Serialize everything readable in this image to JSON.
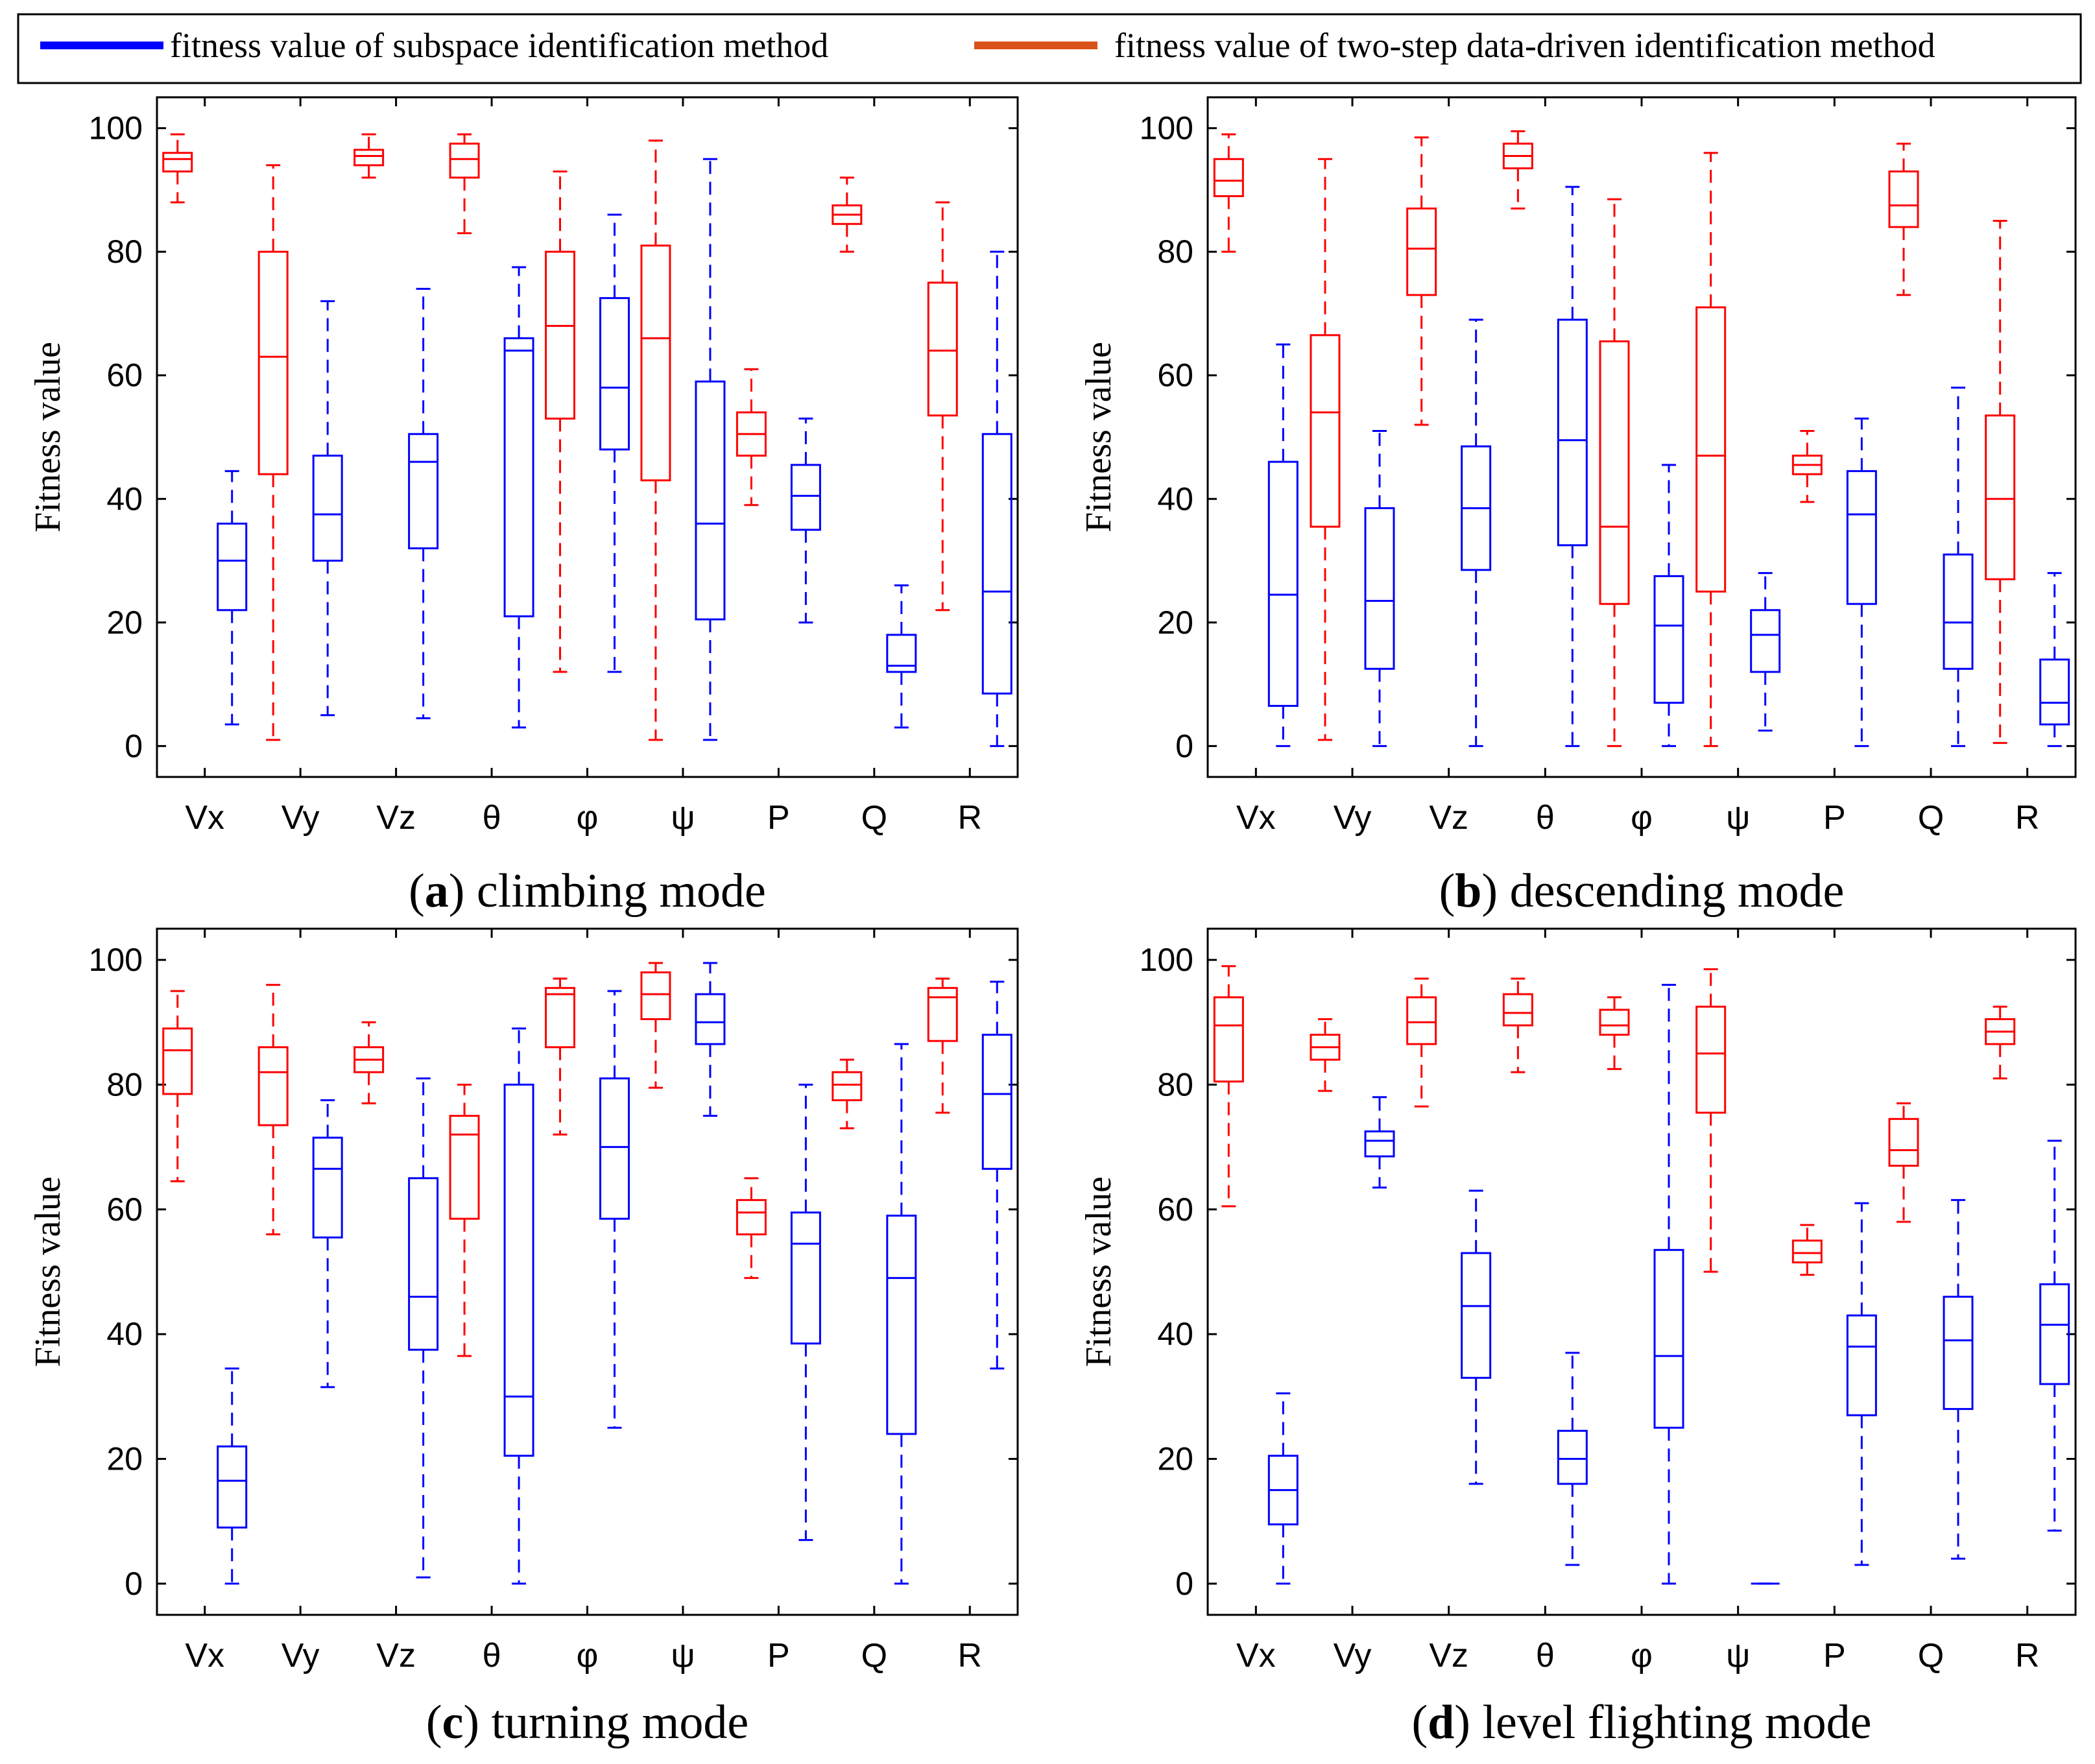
{
  "legend": {
    "subspace_label": "fitness value of subspace identification method",
    "twostep_label": "fitness value of two-step data-driven identification method",
    "subspace_color": "#0000ff",
    "twostep_color": "#d95319"
  },
  "colors": {
    "subspace_box": "#0000ff",
    "twostep_box": "#ff0000"
  },
  "chart_data": [
    {
      "type": "box",
      "caption_letter": "a",
      "caption_text": " climbing mode",
      "ylabel": "Fitness value",
      "ylim": [
        -5,
        105
      ],
      "yticks": [
        0,
        20,
        40,
        60,
        80,
        100
      ],
      "categories": [
        "Vx",
        "Vy",
        "Vz",
        "θ",
        "φ",
        "ψ",
        "P",
        "Q",
        "R"
      ],
      "series": [
        {
          "name": "two-step data-driven identification method",
          "boxes": [
            {
              "min": 88,
              "q1": 93,
              "median": 95,
              "q3": 96,
              "max": 99
            },
            {
              "min": 1,
              "q1": 44,
              "median": 63,
              "q3": 80,
              "max": 94
            },
            {
              "min": 92,
              "q1": 94,
              "median": 95.5,
              "q3": 96.5,
              "max": 99
            },
            {
              "min": 83,
              "q1": 92,
              "median": 95,
              "q3": 97.5,
              "max": 99
            },
            {
              "min": 12,
              "q1": 53,
              "median": 68,
              "q3": 80,
              "max": 93
            },
            {
              "min": 1,
              "q1": 43,
              "median": 66,
              "q3": 81,
              "max": 98
            },
            {
              "min": 39,
              "q1": 47,
              "median": 50.5,
              "q3": 54,
              "max": 61
            },
            {
              "min": 80,
              "q1": 84.5,
              "median": 86,
              "q3": 87.5,
              "max": 92
            },
            {
              "min": 22,
              "q1": 53.5,
              "median": 64,
              "q3": 75,
              "max": 88
            }
          ]
        },
        {
          "name": "subspace identification method",
          "boxes": [
            {
              "min": 3.5,
              "q1": 22,
              "median": 30,
              "q3": 36,
              "max": 44.5
            },
            {
              "min": 5,
              "q1": 30,
              "median": 37.5,
              "q3": 47,
              "max": 72
            },
            {
              "min": 4.5,
              "q1": 32,
              "median": 46,
              "q3": 50.5,
              "max": 74
            },
            {
              "min": 3,
              "q1": 21,
              "median": 64,
              "q3": 66,
              "max": 77.5
            },
            {
              "min": 12,
              "q1": 48,
              "median": 58,
              "q3": 72.5,
              "max": 86
            },
            {
              "min": 1,
              "q1": 20.5,
              "median": 36,
              "q3": 59,
              "max": 95
            },
            {
              "min": 20,
              "q1": 35,
              "median": 40.5,
              "q3": 45.5,
              "max": 53
            },
            {
              "min": 3,
              "q1": 12,
              "median": 13,
              "q3": 18,
              "max": 26
            },
            {
              "min": 0,
              "q1": 8.5,
              "median": 25,
              "q3": 50.5,
              "max": 80
            }
          ]
        }
      ]
    },
    {
      "type": "box",
      "caption_letter": "b",
      "caption_text": " descending mode",
      "ylabel": "Fitness value",
      "ylim": [
        -5,
        105
      ],
      "yticks": [
        0,
        20,
        40,
        60,
        80,
        100
      ],
      "categories": [
        "Vx",
        "Vy",
        "Vz",
        "θ",
        "φ",
        "ψ",
        "P",
        "Q",
        "R"
      ],
      "series": [
        {
          "name": "two-step data-driven identification method",
          "boxes": [
            {
              "min": 80,
              "q1": 89,
              "median": 91.5,
              "q3": 95,
              "max": 99
            },
            {
              "min": 1,
              "q1": 35.5,
              "median": 54,
              "q3": 66.5,
              "max": 95
            },
            {
              "min": 52,
              "q1": 73,
              "median": 80.5,
              "q3": 87,
              "max": 98.5
            },
            {
              "min": 87,
              "q1": 93.5,
              "median": 95.5,
              "q3": 97.5,
              "max": 99.5
            },
            {
              "min": 0,
              "q1": 23,
              "median": 35.5,
              "q3": 65.5,
              "max": 88.5
            },
            {
              "min": 0,
              "q1": 25,
              "median": 47,
              "q3": 71,
              "max": 96
            },
            {
              "min": 39.5,
              "q1": 44,
              "median": 45.5,
              "q3": 47,
              "max": 51
            },
            {
              "min": 73,
              "q1": 84,
              "median": 87.5,
              "q3": 93,
              "max": 97.5
            },
            {
              "min": 0.5,
              "q1": 27,
              "median": 40,
              "q3": 53.5,
              "max": 85
            }
          ]
        },
        {
          "name": "subspace identification method",
          "boxes": [
            {
              "min": 0,
              "q1": 6.5,
              "median": 24.5,
              "q3": 46,
              "max": 65
            },
            {
              "min": 0,
              "q1": 12.5,
              "median": 23.5,
              "q3": 38.5,
              "max": 51
            },
            {
              "min": 0,
              "q1": 28.5,
              "median": 38.5,
              "q3": 48.5,
              "max": 69
            },
            {
              "min": 0,
              "q1": 32.5,
              "median": 49.5,
              "q3": 69,
              "max": 90.5
            },
            {
              "min": 0,
              "q1": 7,
              "median": 19.5,
              "q3": 27.5,
              "max": 45.5
            },
            {
              "min": 2.5,
              "q1": 12,
              "median": 18,
              "q3": 22,
              "max": 28
            },
            {
              "min": 0,
              "q1": 23,
              "median": 37.5,
              "q3": 44.5,
              "max": 53
            },
            {
              "min": 0,
              "q1": 12.5,
              "median": 20,
              "q3": 31,
              "max": 58
            },
            {
              "min": 0,
              "q1": 3.5,
              "median": 7,
              "q3": 14,
              "max": 28
            }
          ]
        }
      ]
    },
    {
      "type": "box",
      "caption_letter": "c",
      "caption_text": " turning mode",
      "ylabel": "Fitness value",
      "ylim": [
        -5,
        105
      ],
      "yticks": [
        0,
        20,
        40,
        60,
        80,
        100
      ],
      "categories": [
        "Vx",
        "Vy",
        "Vz",
        "θ",
        "φ",
        "ψ",
        "P",
        "Q",
        "R"
      ],
      "series": [
        {
          "name": "two-step data-driven identification method",
          "boxes": [
            {
              "min": 64.5,
              "q1": 78.5,
              "median": 85.5,
              "q3": 89,
              "max": 95
            },
            {
              "min": 56,
              "q1": 73.5,
              "median": 82,
              "q3": 86,
              "max": 96
            },
            {
              "min": 77,
              "q1": 82,
              "median": 84,
              "q3": 86,
              "max": 90
            },
            {
              "min": 36.5,
              "q1": 58.5,
              "median": 72,
              "q3": 75,
              "max": 80
            },
            {
              "min": 72,
              "q1": 86,
              "median": 94.5,
              "q3": 95.5,
              "max": 97
            },
            {
              "min": 79.5,
              "q1": 90.5,
              "median": 94.5,
              "q3": 98,
              "max": 99.5
            },
            {
              "min": 49,
              "q1": 56,
              "median": 59.5,
              "q3": 61.5,
              "max": 65
            },
            {
              "min": 73,
              "q1": 77.5,
              "median": 80,
              "q3": 82,
              "max": 84
            },
            {
              "min": 75.5,
              "q1": 87,
              "median": 94,
              "q3": 95.5,
              "max": 97
            }
          ]
        },
        {
          "name": "subspace identification method",
          "boxes": [
            {
              "min": 0,
              "q1": 9,
              "median": 16.5,
              "q3": 22,
              "max": 34.5
            },
            {
              "min": 31.5,
              "q1": 55.5,
              "median": 66.5,
              "q3": 71.5,
              "max": 77.5
            },
            {
              "min": 1,
              "q1": 37.5,
              "median": 46,
              "q3": 65,
              "max": 81
            },
            {
              "min": 0,
              "q1": 20.5,
              "median": 30,
              "q3": 80,
              "max": 89
            },
            {
              "min": 25,
              "q1": 58.5,
              "median": 70,
              "q3": 81,
              "max": 95
            },
            {
              "min": 75,
              "q1": 86.5,
              "median": 90,
              "q3": 94.5,
              "max": 99.5
            },
            {
              "min": 7,
              "q1": 38.5,
              "median": 54.5,
              "q3": 59.5,
              "max": 80
            },
            {
              "min": 0,
              "q1": 24,
              "median": 49,
              "q3": 59,
              "max": 86.5
            },
            {
              "min": 34.5,
              "q1": 66.5,
              "median": 78.5,
              "q3": 88,
              "max": 96.5
            }
          ]
        }
      ]
    },
    {
      "type": "box",
      "caption_letter": "d",
      "caption_text": " level flighting mode",
      "ylabel": "Fitness value",
      "ylim": [
        -5,
        105
      ],
      "yticks": [
        0,
        20,
        40,
        60,
        80,
        100
      ],
      "categories": [
        "Vx",
        "Vy",
        "Vz",
        "θ",
        "φ",
        "ψ",
        "P",
        "Q",
        "R"
      ],
      "series": [
        {
          "name": "two-step data-driven identification method",
          "boxes": [
            {
              "min": 60.5,
              "q1": 80.5,
              "median": 89.5,
              "q3": 94,
              "max": 99
            },
            {
              "min": 79,
              "q1": 84,
              "median": 86,
              "q3": 88,
              "max": 90.5
            },
            {
              "min": 76.5,
              "q1": 86.5,
              "median": 90,
              "q3": 94,
              "max": 97
            },
            {
              "min": 82,
              "q1": 89.5,
              "median": 91.5,
              "q3": 94.5,
              "max": 97
            },
            {
              "min": 82.5,
              "q1": 88,
              "median": 89.5,
              "q3": 92,
              "max": 94
            },
            {
              "min": 50,
              "q1": 75.5,
              "median": 85,
              "q3": 92.5,
              "max": 98.5
            },
            {
              "min": 49.5,
              "q1": 51.5,
              "median": 53,
              "q3": 55,
              "max": 57.5
            },
            {
              "min": 58,
              "q1": 67,
              "median": 69.5,
              "q3": 74.5,
              "max": 77
            },
            {
              "min": 81,
              "q1": 86.5,
              "median": 88.5,
              "q3": 90.5,
              "max": 92.5
            }
          ]
        },
        {
          "name": "subspace identification method",
          "boxes": [
            {
              "min": 0,
              "q1": 9.5,
              "median": 15,
              "q3": 20.5,
              "max": 30.5
            },
            {
              "min": 63.5,
              "q1": 68.5,
              "median": 71,
              "q3": 72.5,
              "max": 78
            },
            {
              "min": 16,
              "q1": 33,
              "median": 44.5,
              "q3": 53,
              "max": 63
            },
            {
              "min": 3,
              "q1": 16,
              "median": 20,
              "q3": 24.5,
              "max": 37
            },
            {
              "min": 0,
              "q1": 25,
              "median": 36.5,
              "q3": 53.5,
              "max": 96
            },
            {
              "min": 0,
              "q1": 0,
              "median": 0,
              "q3": 0,
              "max": 0
            },
            {
              "min": 3,
              "q1": 27,
              "median": 38,
              "q3": 43,
              "max": 61
            },
            {
              "min": 4,
              "q1": 28,
              "median": 39,
              "q3": 46,
              "max": 61.5
            },
            {
              "min": 8.5,
              "q1": 32,
              "median": 41.5,
              "q3": 48,
              "max": 71
            }
          ]
        }
      ]
    }
  ]
}
